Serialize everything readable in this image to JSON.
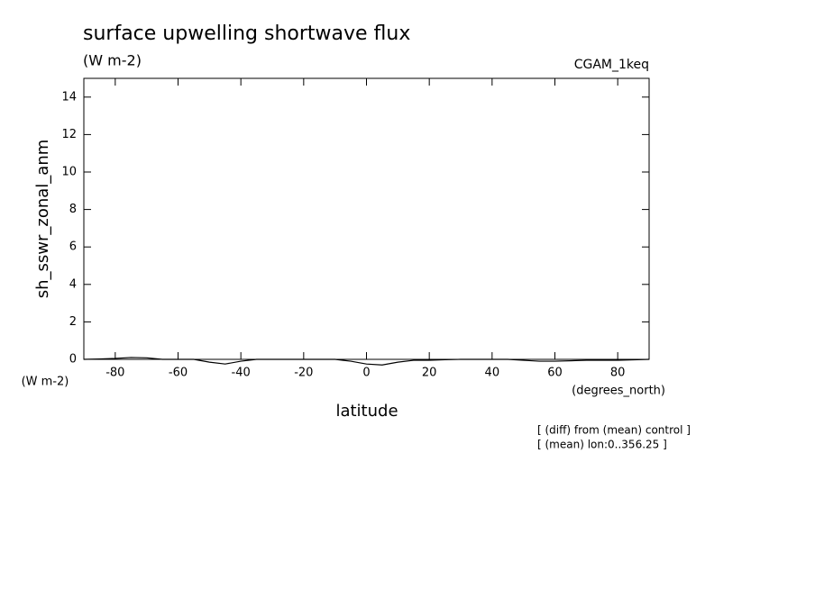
{
  "chart_data": {
    "type": "line",
    "title": "surface upwelling shortwave flux",
    "subtitle": "(W m-2)",
    "dataset": "CGAM_1keq",
    "ylabel": "sh_sswr_zonal_anm",
    "y_units": "(W m-2)",
    "xlabel": "latitude",
    "x_units": "(degrees_north)",
    "annotations": [
      "[ (diff) from (mean) control ]",
      "[ (mean) lon:0..356.25 ]"
    ],
    "x": [
      -90,
      -85,
      -80,
      -75,
      -70,
      -65,
      -60,
      -55,
      -50,
      -45,
      -40,
      -35,
      -30,
      -20,
      -10,
      -5,
      0,
      5,
      10,
      15,
      20,
      25,
      30,
      40,
      45,
      50,
      55,
      60,
      70,
      80,
      90
    ],
    "series": [
      {
        "name": "sh_sswr_zonal_anm",
        "color": "#000000",
        "values": [
          0,
          0.02,
          0.05,
          0.1,
          0.08,
          0,
          0,
          0,
          -0.15,
          -0.25,
          -0.1,
          0,
          0,
          0,
          0,
          -0.1,
          -0.25,
          -0.3,
          -0.15,
          -0.05,
          -0.05,
          -0.02,
          0,
          0,
          0,
          -0.05,
          -0.1,
          -0.1,
          -0.05,
          -0.05,
          0
        ]
      }
    ],
    "xlim": [
      -90,
      90
    ],
    "ylim": [
      0,
      15
    ],
    "xticks": [
      -80,
      -60,
      -40,
      -20,
      0,
      20,
      40,
      60,
      80
    ],
    "yticks": [
      0,
      2,
      4,
      6,
      8,
      10,
      12,
      14
    ],
    "grid": false
  }
}
